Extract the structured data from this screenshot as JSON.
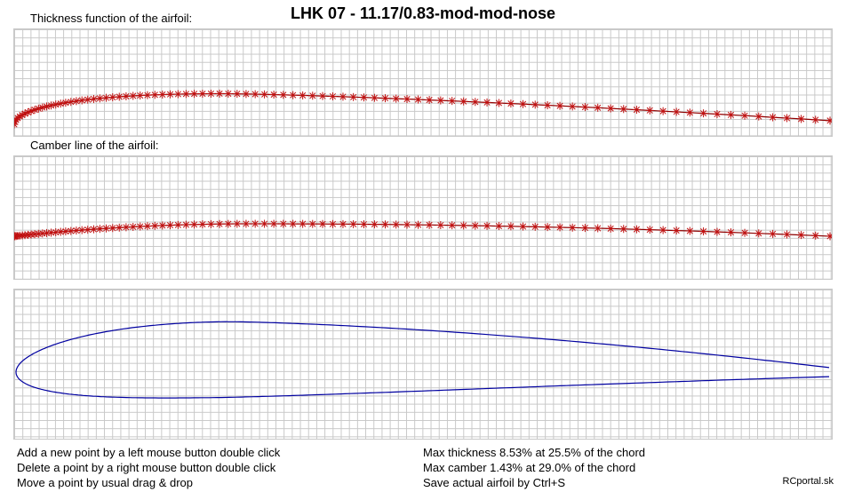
{
  "window": {
    "title": "LHK  07 - 11.17/0.83-mod-mod-nose"
  },
  "panels": {
    "thickness_label": "Thickness function of the airfoil:",
    "camber_label": "Camber line of the airfoil:"
  },
  "instructions": {
    "add": "Add a new point by a left mouse button double click",
    "delete": "Delete a point by a right mouse button double click",
    "move": "Move a point by usual drag & drop"
  },
  "stats": {
    "max_thickness": "Max thickness 8.53% at 25.5% of the chord",
    "max_camber": "Max camber 1.43% at 29.0% of the chord",
    "save_hint": "Save actual airfoil by Ctrl+S"
  },
  "credit": "RCportal.sk",
  "colors": {
    "point_marker": "#c01010",
    "curve_line": "#8b0000",
    "airfoil_outline": "#0000a0",
    "grid": "#c8c8c8"
  },
  "airfoil": {
    "max_thickness_pct": 8.53,
    "max_thickness_pos_pct": 25.5,
    "max_camber_pct": 1.43,
    "max_camber_pos_pct": 29.0
  }
}
